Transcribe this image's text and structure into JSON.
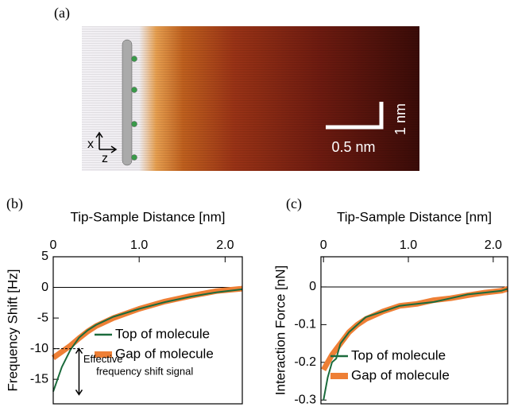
{
  "panel_a": {
    "label": "(a)",
    "axis_x": "x",
    "axis_z": "z",
    "scale_horizontal": "0.5 nm",
    "scale_vertical": "1 nm"
  },
  "chart_data": [
    {
      "type": "line",
      "panel": "(b)",
      "xlabel": "Tip-Sample Distance [nm]",
      "ylabel": "Frequency Shift [Hz]",
      "xlim": [
        0,
        2.2
      ],
      "ylim": [
        -19,
        5
      ],
      "xticks": [
        0,
        {
          "value": 1,
          "label": "1.0"
        },
        {
          "value": 2,
          "label": "2.0"
        }
      ],
      "yticks": [
        5,
        0,
        -5,
        -10,
        -15
      ],
      "reference_line": 0,
      "legend": "lower right",
      "grid": false,
      "annotation": [
        "Effective",
        "frequency shift signal"
      ],
      "x": [
        0,
        0.05,
        0.1,
        0.2,
        0.3,
        0.4,
        0.5,
        0.7,
        1.0,
        1.3,
        1.6,
        1.9,
        2.2
      ],
      "series": [
        {
          "name": "Top of molecule",
          "color": "#1b6b3c",
          "values": [
            -17,
            -15,
            -13,
            -10.2,
            -8.2,
            -7,
            -6.1,
            -4.8,
            -3.5,
            -2.4,
            -1.5,
            -0.8,
            -0.3
          ]
        },
        {
          "name": "Gap of molecule",
          "color": "#ee7f35",
          "values": [
            -11.5,
            -11,
            -10.5,
            -9.5,
            -8.3,
            -7.2,
            -6.3,
            -5,
            -3.5,
            -2.3,
            -1.4,
            -0.6,
            -0.2
          ]
        }
      ]
    },
    {
      "type": "line",
      "panel": "(c)",
      "xlabel": "Tip-Sample Distance [nm]",
      "ylabel": "Interaction Force [nN]",
      "xlim": [
        -0.03,
        2.17
      ],
      "ylim": [
        -0.31,
        0.08
      ],
      "xticks": [
        0,
        {
          "value": 1,
          "label": "1.0"
        },
        {
          "value": 2,
          "label": "2.0"
        }
      ],
      "yticks": [
        0,
        -0.1,
        -0.2,
        -0.3
      ],
      "reference_line": 0,
      "legend": "lower right",
      "grid": false,
      "x": [
        0,
        0.05,
        0.1,
        0.15,
        0.2,
        0.3,
        0.4,
        0.5,
        0.7,
        0.9,
        1.1,
        1.3,
        1.5,
        1.7,
        1.9,
        2.1,
        2.17
      ],
      "series": [
        {
          "name": "Top of molecule",
          "color": "#1b6b3c",
          "values": [
            -0.3,
            -0.24,
            -0.2,
            -0.19,
            -0.15,
            -0.12,
            -0.1,
            -0.08,
            -0.065,
            -0.05,
            -0.045,
            -0.04,
            -0.03,
            -0.02,
            -0.015,
            -0.01,
            -0.005
          ]
        },
        {
          "name": "Gap of molecule",
          "color": "#ee7f35",
          "values": [
            -0.22,
            -0.2,
            -0.18,
            -0.165,
            -0.15,
            -0.12,
            -0.1,
            -0.085,
            -0.065,
            -0.05,
            -0.045,
            -0.035,
            -0.03,
            -0.022,
            -0.015,
            -0.01,
            -0.005
          ]
        }
      ]
    }
  ]
}
